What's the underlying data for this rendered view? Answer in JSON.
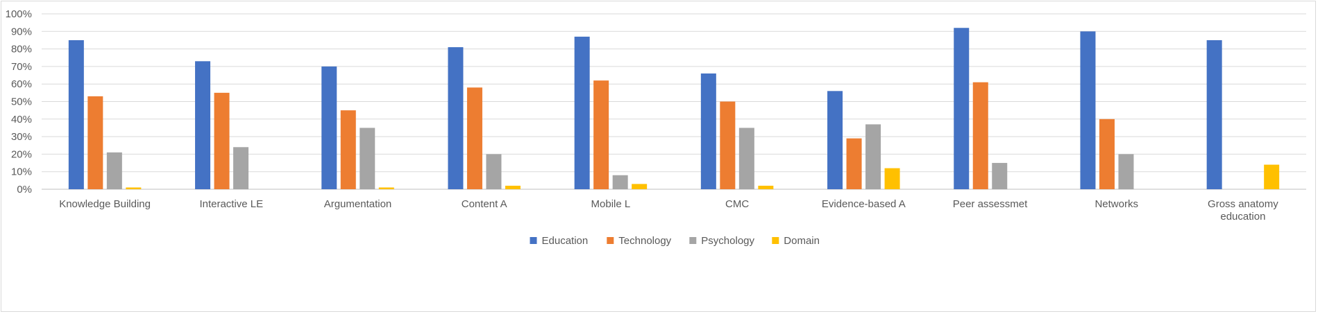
{
  "chart_data": {
    "type": "bar",
    "categories": [
      "Knowledge Building",
      "Interactive LE",
      "Argumentation",
      "Content A",
      "Mobile L",
      "CMC",
      "Evidence-based A",
      "Peer assessmet",
      "Networks",
      "Gross anatomy education"
    ],
    "series": [
      {
        "name": "Education",
        "color": "#4472c4",
        "values": [
          0.85,
          0.73,
          0.7,
          0.81,
          0.87,
          0.66,
          0.56,
          0.92,
          0.9,
          0.85
        ]
      },
      {
        "name": "Technology",
        "color": "#ed7d31",
        "values": [
          0.53,
          0.55,
          0.45,
          0.58,
          0.62,
          0.5,
          0.29,
          0.61,
          0.4,
          0.0
        ]
      },
      {
        "name": "Psychology",
        "color": "#a5a5a5",
        "values": [
          0.21,
          0.24,
          0.35,
          0.2,
          0.08,
          0.35,
          0.37,
          0.15,
          0.2,
          0.0
        ]
      },
      {
        "name": "Domain",
        "color": "#ffc000",
        "values": [
          0.01,
          0.0,
          0.01,
          0.02,
          0.03,
          0.02,
          0.12,
          0.0,
          0.0,
          0.14
        ]
      }
    ],
    "ylim": [
      0,
      1
    ],
    "yticks": [
      "0%",
      "10%",
      "20%",
      "30%",
      "40%",
      "50%",
      "60%",
      "70%",
      "80%",
      "90%",
      "100%"
    ],
    "grid": true,
    "legend_position": "bottom-center"
  }
}
